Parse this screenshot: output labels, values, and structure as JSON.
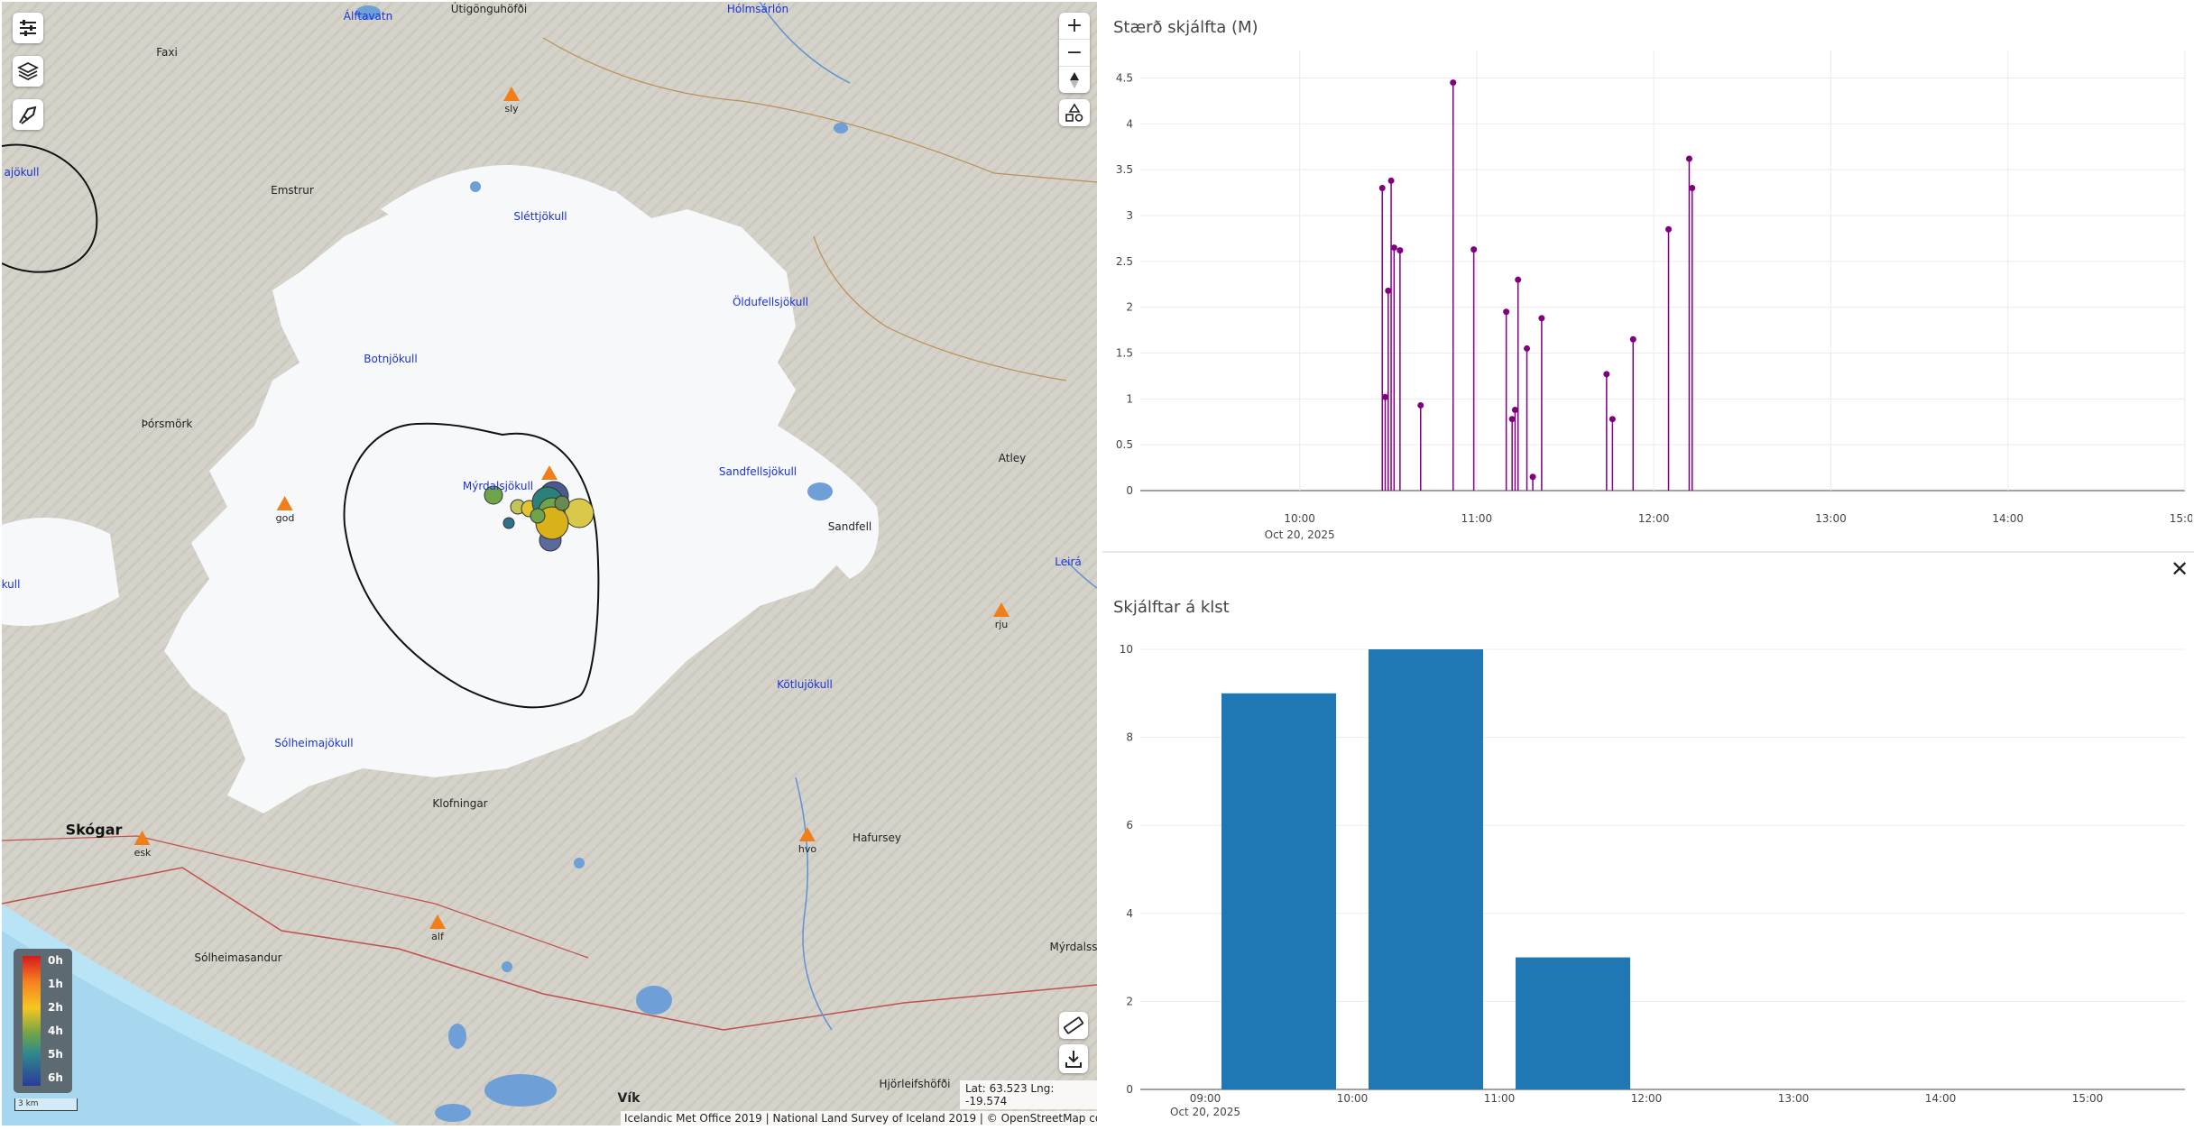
{
  "map": {
    "glaciers": [
      "Mýrdalsjökull",
      "Sléttjökull",
      "Öldufellsjökull",
      "Botnjökull",
      "Sandfellsjökull",
      "Kötlujökull",
      "Sólheimajökull",
      "ajökull",
      "kull"
    ],
    "places": [
      "Álftavatn",
      "Útigönguhöfði",
      "Hólmsárlón",
      "Faxi",
      "Emstrur",
      "Þórsmörk",
      "Atley",
      "Sandfell",
      "Klofningar",
      "Hafursey",
      "Sólheimasandur",
      "Mýrdalss",
      "Hjörleifshöfði",
      "Vík",
      "Leirá"
    ],
    "big_places": [
      "Skógar"
    ],
    "stations": [
      "sly",
      "god",
      "rju",
      "esk",
      "hvo",
      "alf"
    ],
    "legend_labels": [
      "0h",
      "1h",
      "2h",
      "4h",
      "5h",
      "6h"
    ],
    "scale_label": "3 km",
    "coords": "Lat: 63.523 Lng: -19.574",
    "attribution": "Icelandic Met Office 2019 | National Land Survey of Iceland 2019 | © OpenStreetMap contributors",
    "icons": [
      "filter-icon",
      "layers-icon",
      "measure-icon",
      "zoom-in-icon",
      "zoom-out-icon",
      "compass-icon",
      "shapes-icon",
      "ruler-icon",
      "download-icon",
      "close-icon"
    ],
    "colors": {
      "glacier": "#f7f8fa",
      "terrain": "#d4d2c9",
      "water": "#6e9fd6",
      "sea": "#b9e4f6",
      "station": "#f07f1a",
      "bar": "#1f77b4",
      "stem": "#800080"
    }
  },
  "chart_data": [
    {
      "type": "scatter",
      "title": "Stærð skjálfta (M)",
      "x_ticks": [
        "10:00",
        "11:00",
        "12:00",
        "13:00",
        "14:00",
        "15:00"
      ],
      "x_date": "Oct 20, 2025",
      "y_ticks": [
        "0",
        "0.5",
        "1",
        "1.5",
        "2",
        "2.5",
        "3",
        "3.5",
        "4",
        "4.5"
      ],
      "ylim": [
        0,
        4.8
      ],
      "xlim_hours": [
        9.1,
        15.0
      ],
      "points": [
        {
          "t": "10:28",
          "m": 3.3
        },
        {
          "t": "10:29",
          "m": 1.02
        },
        {
          "t": "10:30",
          "m": 2.18
        },
        {
          "t": "10:31",
          "m": 3.38
        },
        {
          "t": "10:32",
          "m": 2.65
        },
        {
          "t": "10:34",
          "m": 2.62
        },
        {
          "t": "10:41",
          "m": 0.93
        },
        {
          "t": "10:52",
          "m": 4.45
        },
        {
          "t": "10:59",
          "m": 2.63
        },
        {
          "t": "11:10",
          "m": 1.95
        },
        {
          "t": "11:12",
          "m": 0.78
        },
        {
          "t": "11:13",
          "m": 0.88
        },
        {
          "t": "11:14",
          "m": 2.3
        },
        {
          "t": "11:17",
          "m": 1.55
        },
        {
          "t": "11:19",
          "m": 0.15
        },
        {
          "t": "11:22",
          "m": 1.88
        },
        {
          "t": "11:44",
          "m": 1.27
        },
        {
          "t": "11:46",
          "m": 0.78
        },
        {
          "t": "11:53",
          "m": 1.65
        },
        {
          "t": "12:05",
          "m": 2.85
        },
        {
          "t": "12:12",
          "m": 3.62
        },
        {
          "t": "12:13",
          "m": 3.3
        }
      ]
    },
    {
      "type": "bar",
      "title": "Skjálftar á klst",
      "categories": [
        "09:00",
        "10:00",
        "11:00",
        "12:00",
        "13:00",
        "14:00",
        "15:00"
      ],
      "x_date": "Oct 20, 2025",
      "values": [
        0,
        9,
        10,
        3,
        0,
        0,
        0
      ],
      "y_ticks": [
        "0",
        "2",
        "4",
        "6",
        "8",
        "10"
      ],
      "ylim": [
        0,
        10
      ]
    }
  ]
}
